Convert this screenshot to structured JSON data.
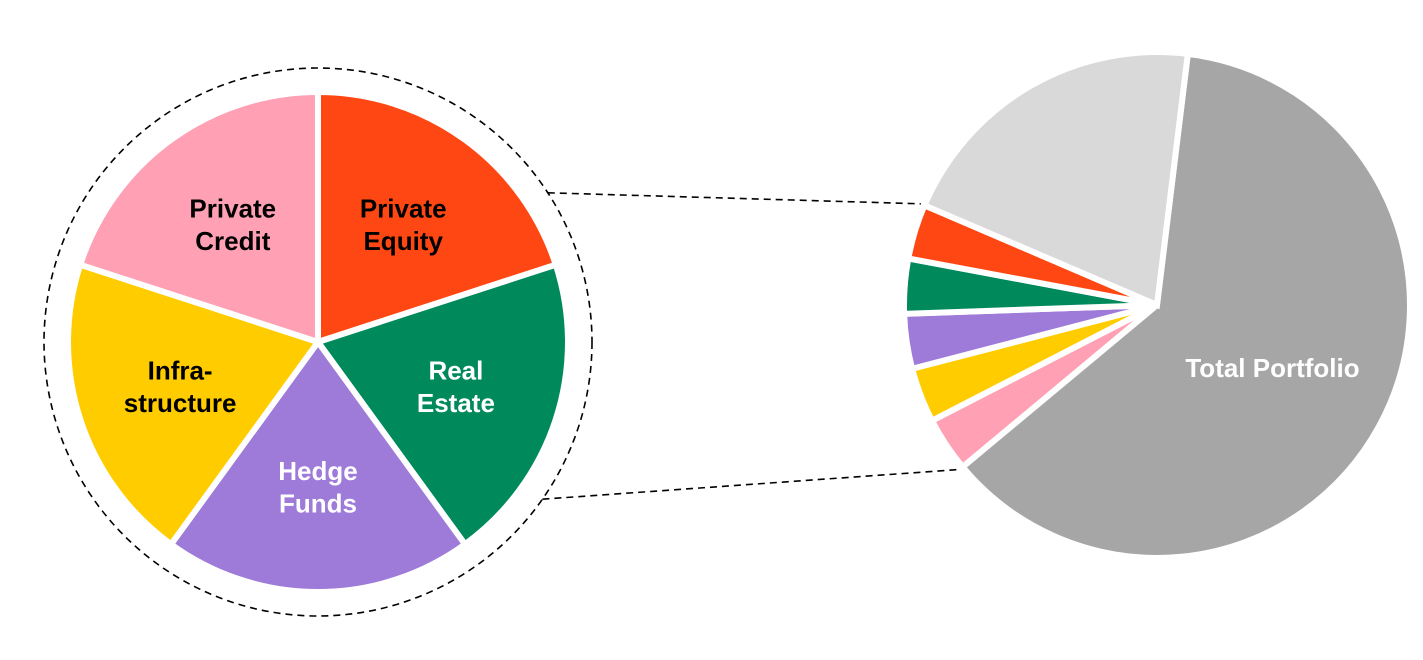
{
  "chart_data": [
    {
      "type": "pie",
      "title": "",
      "slices": [
        {
          "label_lines": [
            "Private",
            "Equity"
          ],
          "value": 20,
          "color": "#FF4713",
          "label_color": "#000000"
        },
        {
          "label_lines": [
            "Real",
            "Estate"
          ],
          "value": 20,
          "color": "#008A5C",
          "label_color": "#FFFFFF"
        },
        {
          "label_lines": [
            "Hedge",
            "Funds"
          ],
          "value": 20,
          "color": "#9E7AD9",
          "label_color": "#FFFFFF"
        },
        {
          "label_lines": [
            "Infra-",
            "structure"
          ],
          "value": 20,
          "color": "#FFCC00",
          "label_color": "#000000"
        },
        {
          "label_lines": [
            "Private",
            "Credit"
          ],
          "value": 20,
          "color": "#FFA0B4",
          "label_color": "#000000"
        }
      ]
    },
    {
      "type": "pie",
      "title": "",
      "slices": [
        {
          "label_lines": [
            "Total Portfolio"
          ],
          "value": 62,
          "color": "#A6A6A6",
          "label_color": "#FFFFFF"
        },
        {
          "label_lines": [],
          "value": 3.5,
          "color": "#FFA0B4",
          "label_color": ""
        },
        {
          "label_lines": [],
          "value": 3.5,
          "color": "#FFCC00",
          "label_color": ""
        },
        {
          "label_lines": [],
          "value": 3.5,
          "color": "#9E7AD9",
          "label_color": ""
        },
        {
          "label_lines": [],
          "value": 3.5,
          "color": "#008A5C",
          "label_color": ""
        },
        {
          "label_lines": [],
          "value": 3.5,
          "color": "#FF4713",
          "label_color": ""
        },
        {
          "label_lines": [],
          "value": 20.5,
          "color": "#D9D9D9",
          "label_color": ""
        }
      ]
    }
  ]
}
